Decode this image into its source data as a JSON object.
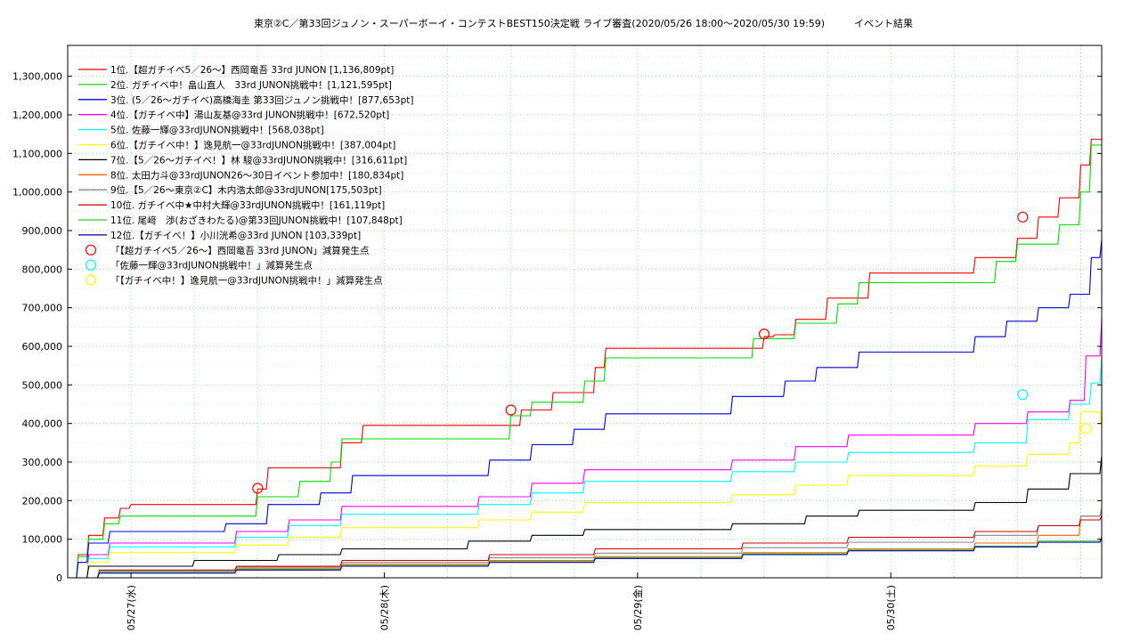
{
  "chart_data": {
    "type": "line",
    "title": "東京②C／第33回ジュノン・スーパーボーイ・コンテストBEST150決定戦 ライブ審査(2020/05/26 18:00〜2020/05/30 19:59)　　　イベント結果",
    "xlabel": "",
    "ylabel": "",
    "x_range": [
      "2020-05-26 18:00",
      "2020-05-30 19:59"
    ],
    "ylim": [
      0,
      1380000
    ],
    "y_ticks": [
      0,
      100000,
      200000,
      300000,
      400000,
      500000,
      600000,
      700000,
      800000,
      900000,
      1000000,
      1100000,
      1200000,
      1300000
    ],
    "y_tick_labels": [
      "0",
      "100,000",
      "200,000",
      "300,000",
      "400,000",
      "500,000",
      "600,000",
      "700,000",
      "800,000",
      "900,000",
      "1,000,000",
      "1,100,000",
      "1,200,000",
      "1,300,000"
    ],
    "x_ticks": [
      "2020-05-27 00:00",
      "2020-05-28 00:00",
      "2020-05-29 00:00",
      "2020-05-30 00:00"
    ],
    "x_tick_labels": [
      "05/27(水)",
      "05/28(木)",
      "05/29(金)",
      "05/30(土)"
    ],
    "grid": true,
    "legend_position": "top-left",
    "series": [
      {
        "name": "1位.【超ガチイベ5／26〜】西岡竜吾 33rd JUNON [1,136,809pt]",
        "color": "#ff0000",
        "x": [
          "2020-05-26 18:00",
          "2020-05-26 19:00",
          "2020-05-26 20:00",
          "2020-05-26 21:30",
          "2020-05-26 23:00",
          "2020-05-27 00:00",
          "2020-05-27 08:00",
          "2020-05-27 12:00",
          "2020-05-27 13:00",
          "2020-05-27 18:00",
          "2020-05-27 20:00",
          "2020-05-27 22:00",
          "2020-05-28 08:00",
          "2020-05-28 10:00",
          "2020-05-28 13:00",
          "2020-05-28 16:00",
          "2020-05-28 18:00",
          "2020-05-28 20:00",
          "2020-05-28 21:00",
          "2020-05-28 22:00",
          "2020-05-29 08:00",
          "2020-05-29 12:00",
          "2020-05-29 13:00",
          "2020-05-29 15:00",
          "2020-05-29 17:00",
          "2020-05-29 18:00",
          "2020-05-29 20:00",
          "2020-05-29 22:00",
          "2020-05-30 08:00",
          "2020-05-30 10:00",
          "2020-05-30 12:00",
          "2020-05-30 13:00",
          "2020-05-30 14:00",
          "2020-05-30 15:00",
          "2020-05-30 16:00",
          "2020-05-30 17:00",
          "2020-05-30 18:00",
          "2020-05-30 19:00",
          "2020-05-30 19:59"
        ],
        "y": [
          0,
          60000,
          110000,
          155000,
          180000,
          190000,
          190000,
          230000,
          285000,
          285000,
          350000,
          395000,
          395000,
          395000,
          435000,
          480000,
          480000,
          545000,
          595000,
          595000,
          595000,
          625000,
          630000,
          670000,
          670000,
          725000,
          725000,
          790000,
          830000,
          830000,
          880000,
          880000,
          935000,
          935000,
          985000,
          985000,
          1070000,
          1136809,
          1136809
        ]
      },
      {
        "name": "2位. ガチイベ中！畠山直人　33rd JUNON挑戦中！[1,121,595pt]",
        "color": "#00dd00",
        "x": [
          "2020-05-26 18:00",
          "2020-05-26 19:00",
          "2020-05-26 20:00",
          "2020-05-26 21:30",
          "2020-05-26 23:00",
          "2020-05-27 05:00",
          "2020-05-27 09:00",
          "2020-05-27 12:00",
          "2020-05-27 14:00",
          "2020-05-27 16:00",
          "2020-05-27 19:00",
          "2020-05-27 20:00",
          "2020-05-27 22:00",
          "2020-05-28 08:00",
          "2020-05-28 10:00",
          "2020-05-28 12:00",
          "2020-05-28 14:00",
          "2020-05-28 17:00",
          "2020-05-28 19:00",
          "2020-05-28 21:00",
          "2020-05-29 08:00",
          "2020-05-29 11:00",
          "2020-05-29 13:00",
          "2020-05-29 15:00",
          "2020-05-29 17:00",
          "2020-05-29 19:00",
          "2020-05-29 21:00",
          "2020-05-30 08:00",
          "2020-05-30 10:00",
          "2020-05-30 12:00",
          "2020-05-30 14:00",
          "2020-05-30 16:00",
          "2020-05-30 18:00",
          "2020-05-30 19:00",
          "2020-05-30 19:59"
        ],
        "y": [
          0,
          55000,
          100000,
          140000,
          160000,
          160000,
          160000,
          210000,
          210000,
          250000,
          300000,
          360000,
          360000,
          360000,
          360000,
          420000,
          455000,
          455000,
          510000,
          570000,
          570000,
          620000,
          620000,
          660000,
          660000,
          710000,
          765000,
          765000,
          820000,
          865000,
          865000,
          915000,
          1000000,
          1121595,
          1121595
        ]
      },
      {
        "name": "3位. (5／26〜ガチイベ)高橋海圭 第33回ジュノン挑戦中！[877,653pt]",
        "color": "#0000dd",
        "x": [
          "2020-05-26 18:00",
          "2020-05-26 19:00",
          "2020-05-26 20:00",
          "2020-05-26 22:00",
          "2020-05-27 09:00",
          "2020-05-27 13:00",
          "2020-05-27 18:00",
          "2020-05-27 21:00",
          "2020-05-28 10:00",
          "2020-05-28 14:00",
          "2020-05-28 18:00",
          "2020-05-28 21:00",
          "2020-05-29 09:00",
          "2020-05-29 14:00",
          "2020-05-29 17:00",
          "2020-05-29 21:00",
          "2020-05-30 08:00",
          "2020-05-30 11:00",
          "2020-05-30 14:00",
          "2020-05-30 17:00",
          "2020-05-30 19:00",
          "2020-05-30 19:59"
        ],
        "y": [
          0,
          40000,
          90000,
          120000,
          140000,
          190000,
          220000,
          265000,
          305000,
          345000,
          385000,
          425000,
          470000,
          510000,
          545000,
          585000,
          625000,
          665000,
          700000,
          735000,
          830000,
          877653
        ]
      },
      {
        "name": "4位.【ガチイベ中】湯山友基@33rd JUNON挑戦中！[672,520pt]",
        "color": "#ff00ff",
        "x": [
          "2020-05-26 18:00",
          "2020-05-26 20:00",
          "2020-05-26 22:00",
          "2020-05-27 10:00",
          "2020-05-27 15:00",
          "2020-05-27 20:00",
          "2020-05-28 09:00",
          "2020-05-28 14:00",
          "2020-05-28 19:00",
          "2020-05-29 09:00",
          "2020-05-29 15:00",
          "2020-05-29 20:00",
          "2020-05-30 08:00",
          "2020-05-30 13:00",
          "2020-05-30 17:00",
          "2020-05-30 18:30",
          "2020-05-30 19:59"
        ],
        "y": [
          0,
          60000,
          90000,
          120000,
          150000,
          185000,
          210000,
          245000,
          280000,
          305000,
          340000,
          370000,
          400000,
          430000,
          460000,
          575000,
          672520
        ]
      },
      {
        "name": "5位. 佐藤一輝@33rdJUNON挑戦中！[568,038pt]",
        "color": "#00ffff",
        "x": [
          "2020-05-26 18:00",
          "2020-05-26 20:00",
          "2020-05-26 22:00",
          "2020-05-27 10:00",
          "2020-05-27 15:00",
          "2020-05-27 20:00",
          "2020-05-28 09:00",
          "2020-05-28 14:00",
          "2020-05-28 19:00",
          "2020-05-29 09:00",
          "2020-05-29 15:00",
          "2020-05-29 20:00",
          "2020-05-30 08:00",
          "2020-05-30 13:00",
          "2020-05-30 17:00",
          "2020-05-30 19:00",
          "2020-05-30 19:59"
        ],
        "y": [
          0,
          50000,
          80000,
          105000,
          135000,
          165000,
          190000,
          220000,
          250000,
          275000,
          300000,
          325000,
          350000,
          410000,
          450000,
          505000,
          568038
        ]
      },
      {
        "name": "6位.【ガチイベ中！】逸見航一@33rdJUNON挑戦中！[387,004pt]",
        "color": "#ffff00",
        "x": [
          "2020-05-26 18:00",
          "2020-05-26 20:00",
          "2020-05-26 22:00",
          "2020-05-27 10:00",
          "2020-05-27 15:00",
          "2020-05-27 20:00",
          "2020-05-28 09:00",
          "2020-05-28 14:00",
          "2020-05-28 19:00",
          "2020-05-29 09:00",
          "2020-05-29 15:00",
          "2020-05-29 20:00",
          "2020-05-30 08:00",
          "2020-05-30 13:00",
          "2020-05-30 17:00",
          "2020-05-30 18:00",
          "2020-05-30 19:59"
        ],
        "y": [
          0,
          40000,
          65000,
          85000,
          105000,
          130000,
          150000,
          170000,
          195000,
          215000,
          240000,
          265000,
          290000,
          320000,
          350000,
          430000,
          387004
        ]
      },
      {
        "name": "7位.【5／26〜ガチイベ！】林 駿@33rdJUNON挑戦中！[316,611pt]",
        "color": "#000000",
        "x": [
          "2020-05-26 18:00",
          "2020-05-26 20:00",
          "2020-05-27 06:00",
          "2020-05-27 14:00",
          "2020-05-27 20:00",
          "2020-05-28 08:00",
          "2020-05-28 14:00",
          "2020-05-28 19:00",
          "2020-05-29 09:00",
          "2020-05-29 16:00",
          "2020-05-29 21:00",
          "2020-05-30 08:00",
          "2020-05-30 13:00",
          "2020-05-30 17:00",
          "2020-05-30 19:59"
        ],
        "y": [
          0,
          30000,
          45000,
          60000,
          75000,
          95000,
          110000,
          125000,
          140000,
          160000,
          175000,
          195000,
          230000,
          270000,
          316611
        ]
      },
      {
        "name": "8位. 太田力斗@33rdJUNON26〜30日イベント参加中！[180,834pt]",
        "color": "#ff6600",
        "x": [
          "2020-05-26 18:00",
          "2020-05-26 21:00",
          "2020-05-27 10:00",
          "2020-05-27 20:00",
          "2020-05-28 10:00",
          "2020-05-28 20:00",
          "2020-05-29 10:00",
          "2020-05-29 20:00",
          "2020-05-30 08:00",
          "2020-05-30 14:00",
          "2020-05-30 18:00",
          "2020-05-30 19:59"
        ],
        "y": [
          0,
          15000,
          25000,
          35000,
          45000,
          55000,
          65000,
          75000,
          90000,
          110000,
          160000,
          180834
        ]
      },
      {
        "name": "9位.【5／26〜東京②C】木内浩太郎@33rdJUNON[175,503pt]",
        "color": "#888888",
        "x": [
          "2020-05-26 18:00",
          "2020-05-26 21:00",
          "2020-05-27 10:00",
          "2020-05-27 20:00",
          "2020-05-28 10:00",
          "2020-05-28 20:00",
          "2020-05-29 10:00",
          "2020-05-29 20:00",
          "2020-05-30 08:00",
          "2020-05-30 14:00",
          "2020-05-30 18:00",
          "2020-05-30 19:59"
        ],
        "y": [
          0,
          18000,
          28000,
          40000,
          52000,
          64000,
          78000,
          92000,
          110000,
          135000,
          160000,
          175503
        ]
      },
      {
        "name": "10位. ガチイベ中★中村大輝@33rdJUNON挑戦中！[161,119pt]",
        "color": "#cc0000",
        "x": [
          "2020-05-26 18:00",
          "2020-05-26 21:00",
          "2020-05-27 10:00",
          "2020-05-27 20:00",
          "2020-05-28 10:00",
          "2020-05-28 20:00",
          "2020-05-29 10:00",
          "2020-05-29 20:00",
          "2020-05-30 08:00",
          "2020-05-30 14:00",
          "2020-05-30 18:00",
          "2020-05-30 19:59"
        ],
        "y": [
          0,
          20000,
          30000,
          45000,
          60000,
          75000,
          90000,
          105000,
          120000,
          135000,
          150000,
          161119
        ]
      },
      {
        "name": "11位. 尾﨑　渉(おざきわたる)@第33回JUNON挑戦中！[107,848pt]",
        "color": "#33cc33",
        "x": [
          "2020-05-26 18:00",
          "2020-05-26 21:00",
          "2020-05-27 10:00",
          "2020-05-27 20:00",
          "2020-05-28 10:00",
          "2020-05-28 20:00",
          "2020-05-29 10:00",
          "2020-05-29 20:00",
          "2020-05-30 08:00",
          "2020-05-30 14:00",
          "2020-05-30 19:59"
        ],
        "y": [
          0,
          15000,
          22000,
          32000,
          42000,
          52000,
          62000,
          72000,
          82000,
          95000,
          107848
        ]
      },
      {
        "name": "12位.【ガチイベ！】小川洸希@33rd JUNON [103,339pt]",
        "color": "#0000aa",
        "x": [
          "2020-05-26 18:00",
          "2020-05-26 21:00",
          "2020-05-27 10:00",
          "2020-05-27 20:00",
          "2020-05-28 10:00",
          "2020-05-28 20:00",
          "2020-05-29 10:00",
          "2020-05-29 20:00",
          "2020-05-30 08:00",
          "2020-05-30 14:00",
          "2020-05-30 19:59"
        ],
        "y": [
          0,
          12000,
          20000,
          30000,
          40000,
          50000,
          60000,
          70000,
          80000,
          92000,
          103339
        ]
      }
    ],
    "markers": [
      {
        "name": "「【超ガチイベ5／26〜】西岡竜吾 33rd JUNON」減算発生点",
        "color": "#ff0000",
        "x": [
          "2020-05-27 12:00",
          "2020-05-28 12:00",
          "2020-05-29 12:00",
          "2020-05-30 12:30"
        ],
        "y": [
          232000,
          435000,
          632000,
          935000
        ]
      },
      {
        "name": "「佐藤一輝@33rdJUNON挑戦中！」減算発生点",
        "color": "#00ffff",
        "x": [
          "2020-05-30 12:30"
        ],
        "y": [
          475000
        ]
      },
      {
        "name": "「【ガチイベ中！】逸見航一@33rdJUNON挑戦中！」減算発生点",
        "color": "#ffff00",
        "x": [
          "2020-05-30 18:30"
        ],
        "y": [
          387000
        ]
      }
    ]
  }
}
